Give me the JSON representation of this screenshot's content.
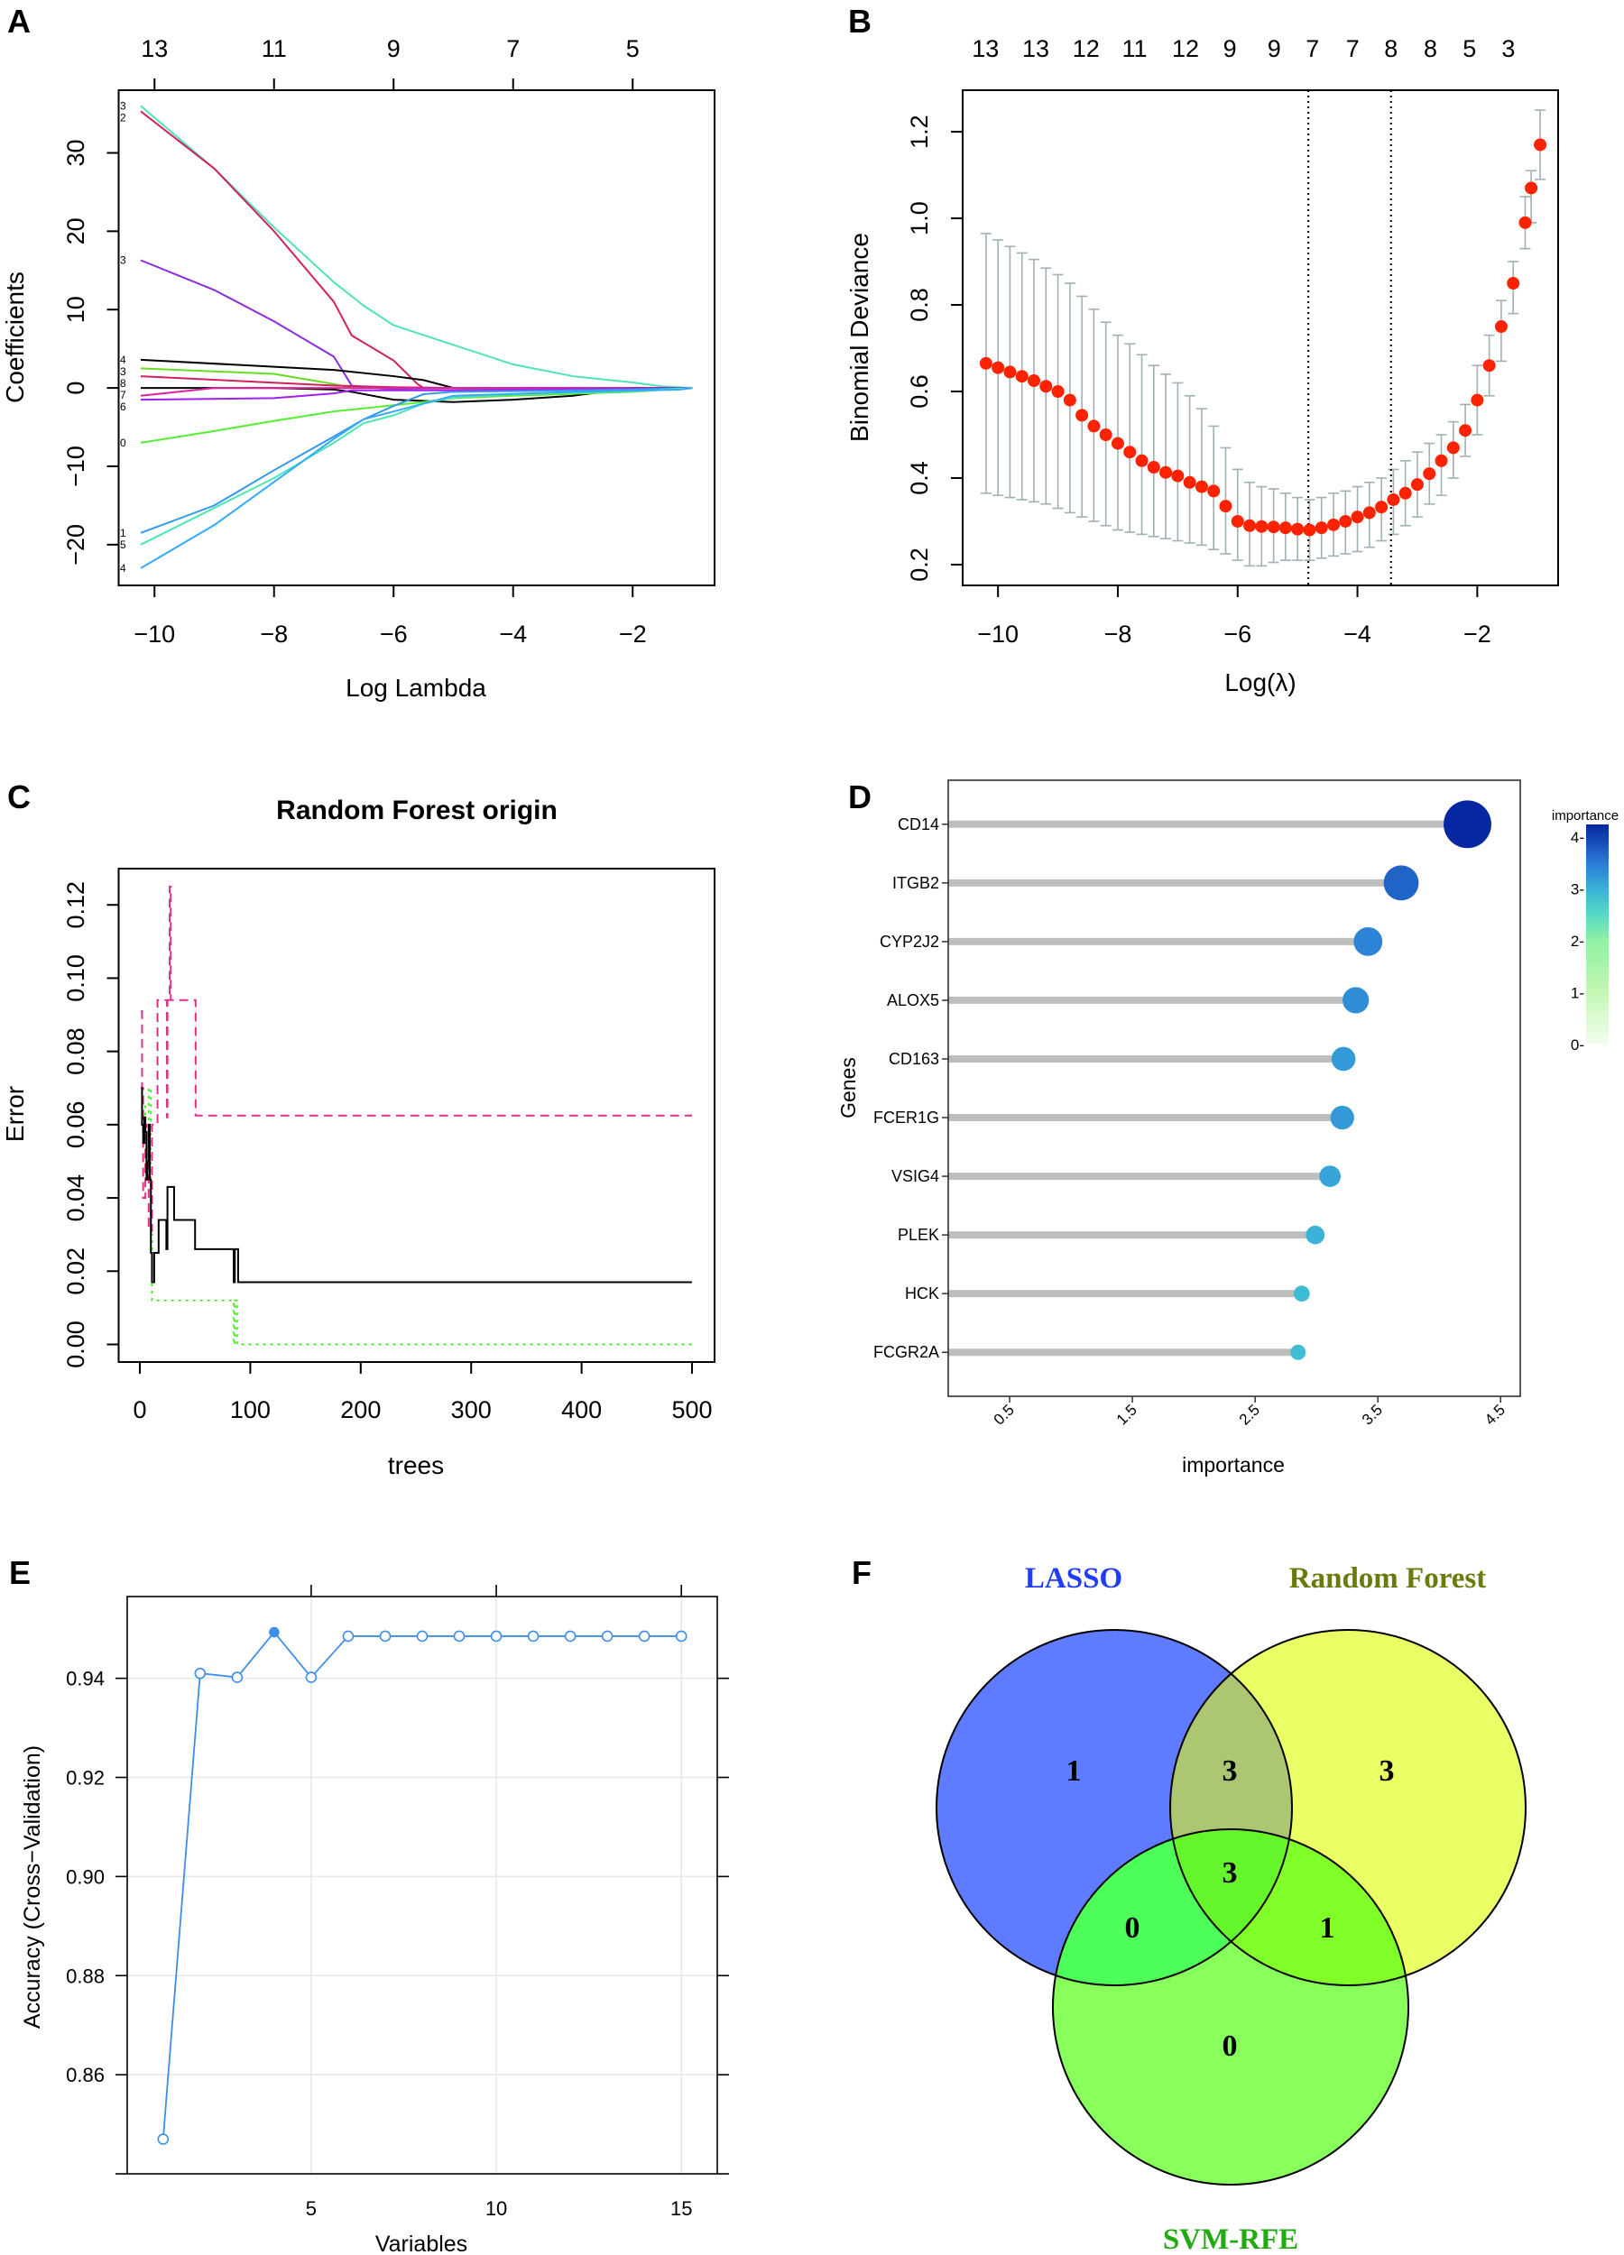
{
  "panel_labels": [
    "A",
    "B",
    "C",
    "D",
    "E",
    "F"
  ],
  "chart_data": [
    {
      "type": "line",
      "xlabel": "Log Lambda",
      "ylabel": "Coefficients",
      "xlim": [
        -10.6,
        -0.63
      ],
      "ylim": [
        -25.2,
        38
      ],
      "x_ticks": [
        -10,
        -8,
        -6,
        -4,
        -2
      ],
      "x_tick_labels": [
        "−10",
        "−8",
        "−6",
        "−4",
        "−2"
      ],
      "y_ticks": [
        -20,
        -10,
        0,
        10,
        20,
        30
      ],
      "y_tick_labels": [
        "−20",
        "−10",
        "0",
        "10",
        "20",
        "30"
      ],
      "top_axis": {
        "ticks": [
          -10,
          -8,
          -6,
          -4,
          -2
        ],
        "labels": [
          "13",
          "11",
          "9",
          "7",
          "5"
        ]
      },
      "series": [
        {
          "label": "3",
          "color": "#4fe3b8",
          "x": [
            -10.23,
            -9,
            -8,
            -7,
            -6.5,
            -6,
            -5,
            -4,
            -3,
            -2,
            -1.5,
            -1
          ],
          "y": [
            36,
            28,
            20.5,
            13.5,
            10.5,
            8,
            5.5,
            3,
            1.5,
            0.7,
            0.2,
            0
          ]
        },
        {
          "label": "2",
          "color": "#d0205f",
          "x": [
            -10.23,
            -9,
            -8,
            -7,
            -6.7,
            -6,
            -5.6,
            -5.5,
            -1
          ],
          "y": [
            35.3,
            28,
            20,
            11,
            6.7,
            3.5,
            0.5,
            0,
            0
          ]
        },
        {
          "label": "3",
          "color": "#8a2be2",
          "x": [
            -10.23,
            -9,
            -8,
            -7,
            -6.7,
            -6,
            -5,
            -1
          ],
          "y": [
            16.3,
            12.5,
            8.5,
            4,
            0.3,
            -0.2,
            -0.3,
            0
          ]
        },
        {
          "label": "4",
          "color": "#000000",
          "x": [
            -10.23,
            -8,
            -7,
            -6,
            -5.5,
            -5,
            -1
          ],
          "y": [
            3.6,
            2.7,
            2.3,
            1.5,
            1,
            0,
            0
          ]
        },
        {
          "label": "3",
          "color": "#66dd22",
          "x": [
            -10.23,
            -8,
            -7,
            -6.7,
            -1
          ],
          "y": [
            2.5,
            1.8,
            0.5,
            0,
            0
          ]
        },
        {
          "label": "8",
          "color": "#d0205f",
          "x": [
            -10.23,
            -7,
            -6,
            -5,
            -1
          ],
          "y": [
            1.5,
            0.3,
            0.1,
            0,
            0
          ]
        },
        {
          "label": "7",
          "color": "#000000",
          "x": [
            -10.23,
            -8,
            -7,
            -6.7,
            -6,
            -5,
            -4,
            -3,
            -2,
            -1
          ],
          "y": [
            0,
            0,
            -0.2,
            -0.5,
            -1.5,
            -1.8,
            -1.5,
            -1,
            0,
            0
          ]
        },
        {
          "label": "",
          "color": "#e020a0",
          "x": [
            -10.23,
            -9,
            -1
          ],
          "y": [
            -1,
            0,
            0
          ]
        },
        {
          "label": "6",
          "color": "#a020f0",
          "x": [
            -10.23,
            -8,
            -7,
            -6.7,
            -5,
            -2,
            -1
          ],
          "y": [
            -1.5,
            -1.3,
            -0.7,
            -0.3,
            -0.3,
            -0.1,
            0
          ]
        },
        {
          "label": "0",
          "color": "#55ee33",
          "x": [
            -10.23,
            -9,
            -8,
            -7,
            -6,
            -5.5,
            -5,
            -4,
            -2,
            -1
          ],
          "y": [
            -7,
            -5.5,
            -4.2,
            -3,
            -2.2,
            -1.8,
            -1.3,
            -1,
            -0.5,
            0
          ]
        },
        {
          "label": "1",
          "color": "#3399ee",
          "x": [
            -10.23,
            -9,
            -8,
            -7,
            -6.5,
            -6,
            -5.5,
            -5,
            -4,
            -2,
            -1
          ],
          "y": [
            -18.5,
            -15,
            -10.5,
            -6.2,
            -4,
            -2.3,
            -0.8,
            -0.5,
            -0.4,
            -0.2,
            0
          ]
        },
        {
          "label": "5",
          "color": "#4fe3b8",
          "x": [
            -10.23,
            -8,
            -7,
            -6.5,
            -6,
            -5.5,
            -5,
            -4,
            -2,
            -1
          ],
          "y": [
            -20,
            -11.5,
            -7,
            -4.5,
            -3.5,
            -2,
            -1.2,
            -0.8,
            -0.4,
            0
          ]
        },
        {
          "label": "4",
          "color": "#33aaff",
          "x": [
            -10.23,
            -9,
            -8,
            -7,
            -6.5,
            -6,
            -5.5,
            -5,
            -3,
            -1.2,
            -1
          ],
          "y": [
            -23,
            -17.5,
            -12,
            -6.5,
            -4,
            -3,
            -2,
            -1,
            -0.5,
            -0.2,
            0
          ]
        }
      ]
    },
    {
      "type": "scatter",
      "xlabel": "Log(λ)",
      "ylabel": "Binomial Deviance",
      "xlim": [
        -10.59,
        -0.65
      ],
      "ylim": [
        0.152,
        1.296
      ],
      "x_ticks": [
        -10,
        -8,
        -6,
        -4,
        -2
      ],
      "x_tick_labels": [
        "−10",
        "−8",
        "−6",
        "−4",
        "−2"
      ],
      "y_ticks": [
        0.2,
        0.4,
        0.6,
        0.8,
        1.0,
        1.2
      ],
      "y_tick_labels": [
        "0.2",
        "0.4",
        "0.6",
        "0.8",
        "1.0",
        "1.2"
      ],
      "top_axis": {
        "ticks": [
          -10.21,
          -9.37,
          -8.53,
          -7.72,
          -6.87,
          -6.13,
          -5.39,
          -4.75,
          -4.08,
          -3.44,
          -2.78,
          -2.13,
          -1.48
        ],
        "labels": [
          "13",
          "13",
          "12",
          "11",
          "12",
          "9",
          "9",
          "7",
          "7",
          "8",
          "8",
          "5",
          "3"
        ]
      },
      "vlines": [
        -4.82,
        -3.44
      ],
      "point_color": "#ff2200",
      "errorbar_color": "#a0b0b4",
      "log_lambda": [
        -10.2,
        -10.0,
        -9.8,
        -9.6,
        -9.4,
        -9.2,
        -9.0,
        -8.8,
        -8.6,
        -8.4,
        -8.2,
        -8.0,
        -7.8,
        -7.6,
        -7.4,
        -7.2,
        -7.0,
        -6.8,
        -6.6,
        -6.4,
        -6.2,
        -6.0,
        -5.8,
        -5.6,
        -5.4,
        -5.2,
        -5.0,
        -4.8,
        -4.6,
        -4.4,
        -4.2,
        -4.0,
        -3.8,
        -3.6,
        -3.4,
        -3.2,
        -3.0,
        -2.8,
        -2.6,
        -2.4,
        -2.2,
        -2.0,
        -1.8,
        -1.6,
        -1.4,
        -1.2,
        -1.1,
        -0.95
      ],
      "mean": [
        0.665,
        0.655,
        0.645,
        0.635,
        0.625,
        0.612,
        0.6,
        0.58,
        0.545,
        0.52,
        0.5,
        0.48,
        0.46,
        0.44,
        0.425,
        0.413,
        0.405,
        0.39,
        0.38,
        0.37,
        0.335,
        0.3,
        0.29,
        0.288,
        0.287,
        0.285,
        0.282,
        0.28,
        0.285,
        0.292,
        0.3,
        0.31,
        0.32,
        0.333,
        0.35,
        0.365,
        0.385,
        0.41,
        0.44,
        0.47,
        0.51,
        0.58,
        0.66,
        0.75,
        0.85,
        0.99,
        1.07,
        1.17
      ],
      "upper": [
        0.965,
        0.95,
        0.935,
        0.92,
        0.905,
        0.885,
        0.87,
        0.85,
        0.82,
        0.79,
        0.76,
        0.73,
        0.71,
        0.685,
        0.66,
        0.64,
        0.62,
        0.59,
        0.56,
        0.52,
        0.47,
        0.42,
        0.39,
        0.38,
        0.375,
        0.365,
        0.355,
        0.35,
        0.355,
        0.365,
        0.37,
        0.38,
        0.39,
        0.4,
        0.42,
        0.44,
        0.46,
        0.48,
        0.5,
        0.53,
        0.57,
        0.66,
        0.73,
        0.81,
        0.9,
        1.05,
        1.11,
        1.25
      ],
      "lower": [
        0.365,
        0.36,
        0.355,
        0.35,
        0.345,
        0.34,
        0.33,
        0.32,
        0.31,
        0.3,
        0.29,
        0.28,
        0.275,
        0.27,
        0.265,
        0.26,
        0.255,
        0.25,
        0.245,
        0.235,
        0.225,
        0.21,
        0.197,
        0.197,
        0.205,
        0.21,
        0.21,
        0.21,
        0.215,
        0.22,
        0.225,
        0.23,
        0.24,
        0.255,
        0.27,
        0.29,
        0.31,
        0.34,
        0.36,
        0.4,
        0.45,
        0.5,
        0.59,
        0.67,
        0.78,
        0.93,
        0.99,
        1.09
      ]
    },
    {
      "type": "line",
      "title": "Random Forest origin",
      "xlabel": "trees",
      "ylabel": "Error",
      "xlim": [
        -19.2,
        520.4
      ],
      "ylim": [
        -0.0048,
        0.1299
      ],
      "x_ticks": [
        0,
        100,
        200,
        300,
        400,
        500
      ],
      "x_tick_labels": [
        "0",
        "100",
        "200",
        "300",
        "400",
        "500"
      ],
      "y_ticks": [
        0,
        0.02,
        0.04,
        0.06,
        0.08,
        0.1,
        0.12
      ],
      "y_tick_labels": [
        "0.00",
        "0.02",
        "0.04",
        "0.06",
        "0.08",
        "0.10",
        "0.12"
      ],
      "series": [
        {
          "style": "solid",
          "color": "#000000",
          "points": [
            [
              1,
              0.07
            ],
            [
              2,
              0.06
            ],
            [
              3,
              0.055
            ],
            [
              4,
              0.062
            ],
            [
              5,
              0.058
            ],
            [
              6,
              0.045
            ],
            [
              7,
              0.05
            ],
            [
              8,
              0.06
            ],
            [
              9,
              0.045
            ],
            [
              10,
              0.025
            ],
            [
              11,
              0.017
            ],
            [
              13,
              0.025
            ],
            [
              17,
              0.034
            ],
            [
              23,
              0.034
            ],
            [
              24,
              0.026
            ],
            [
              25,
              0.043
            ],
            [
              30,
              0.043
            ],
            [
              31,
              0.034
            ],
            [
              49,
              0.034
            ],
            [
              50,
              0.026
            ],
            [
              84,
              0.026
            ],
            [
              85,
              0.017
            ],
            [
              86,
              0.026
            ],
            [
              88,
              0.026
            ],
            [
              89,
              0.017
            ],
            [
              500,
              0.017
            ]
          ]
        },
        {
          "style": "dashed",
          "color": "#e0308a",
          "points": [
            [
              1,
              0.091
            ],
            [
              2,
              0.07
            ],
            [
              3,
              0.04
            ],
            [
              5,
              0.06
            ],
            [
              6,
              0.05
            ],
            [
              8,
              0.031
            ],
            [
              10,
              0.031
            ],
            [
              11,
              0.06
            ],
            [
              16,
              0.094
            ],
            [
              24,
              0.094
            ],
            [
              24.5,
              0.062
            ],
            [
              25,
              0.094
            ],
            [
              27,
              0.125
            ],
            [
              28,
              0.094
            ],
            [
              50,
              0.094
            ],
            [
              50.5,
              0.0625
            ],
            [
              500,
              0.0625
            ]
          ]
        },
        {
          "style": "dotted",
          "color": "#44ee22",
          "points": [
            [
              1,
              0.06
            ],
            [
              3,
              0.065
            ],
            [
              5,
              0.045
            ],
            [
              8,
              0.07
            ],
            [
              10,
              0.03
            ],
            [
              11,
              0.012
            ],
            [
              84,
              0.012
            ],
            [
              85,
              0
            ],
            [
              86,
              0.012
            ],
            [
              88,
              0
            ],
            [
              500,
              0
            ]
          ]
        }
      ]
    },
    {
      "type": "scatter",
      "subtype": "lollipop",
      "xlabel": "importance",
      "ylabel": "Genes",
      "xlim": [
        0,
        4.66
      ],
      "x_ticks": [
        0.5,
        1.5,
        2.5,
        3.5,
        4.5
      ],
      "x_tick_labels": [
        "0.5",
        "1.5",
        "2.5",
        "3.5",
        "4.5"
      ],
      "categories": [
        "CD14",
        "ITGB2",
        "CYP2J2",
        "ALOX5",
        "CD163",
        "FCER1G",
        "VSIG4",
        "PLEK",
        "HCK",
        "FCGR2A"
      ],
      "values": [
        4.23,
        3.69,
        3.42,
        3.32,
        3.22,
        3.21,
        3.11,
        2.99,
        2.88,
        2.85
      ],
      "stem_color": "#bebebe",
      "legend": {
        "title": "importance",
        "position": "right",
        "range": [
          0,
          4.24
        ],
        "ticks": [
          0,
          1,
          2,
          3,
          4
        ],
        "tick_labels": [
          "0-",
          "1-",
          "2-",
          "3-",
          "4-"
        ],
        "colorscale": [
          [
            0,
            "#f4fdf0"
          ],
          [
            1,
            "#c4f7b4"
          ],
          [
            2,
            "#8ff2a2"
          ],
          [
            2.5,
            "#55d9c6"
          ],
          [
            3,
            "#3ab2d8"
          ],
          [
            3.5,
            "#2a7ad6"
          ],
          [
            4.24,
            "#0526a0"
          ]
        ]
      }
    },
    {
      "type": "line",
      "xlabel": "Variables",
      "ylabel": "Accuracy (Cross−Validation)",
      "xlim": [
        0.03,
        15.97
      ],
      "ylim": [
        0.84,
        0.9565
      ],
      "grid": true,
      "color": "#3d8ee8",
      "x_ticks": [
        5,
        10,
        15
      ],
      "x_tick_labels": [
        "5",
        "10",
        "15"
      ],
      "y_ticks": [
        0.86,
        0.88,
        0.9,
        0.92,
        0.94
      ],
      "y_tick_labels": [
        "0.86",
        "0.88",
        "0.90",
        "0.92",
        "0.94"
      ],
      "x": [
        1,
        2,
        3,
        4,
        5,
        6,
        7,
        8,
        9,
        10,
        11,
        12,
        13,
        14,
        15
      ],
      "y": [
        0.847,
        0.941,
        0.9402,
        0.9493,
        0.9402,
        0.9485,
        0.9485,
        0.9485,
        0.9485,
        0.9485,
        0.9485,
        0.9485,
        0.9485,
        0.9485,
        0.9485
      ],
      "highlight_x": 4
    },
    {
      "type": "venn",
      "sets": [
        {
          "name": "LASSO",
          "label_color": "#1f3cff",
          "fill": "#5f7bff"
        },
        {
          "name": "Random Forest",
          "label_color": "#6b7a0a",
          "fill": "#eaff66"
        },
        {
          "name": "SVM-RFE",
          "label_color": "#22aa11",
          "fill": "#88ff5a"
        }
      ],
      "regions": {
        "LASSO_only": "1",
        "RandomForest_only": "3",
        "SVM-RFE_only": "0",
        "LASSO_RandomForest": "3",
        "LASSO_SVM-RFE": "0",
        "RandomForest_SVM-RFE": "1",
        "all": "3"
      },
      "region_fills": {
        "LASSO_RandomForest": "#adc671",
        "LASSO_SVM-RFE": "#4dff58",
        "RandomForest_SVM-RFE": "#80ff28",
        "all": "#64f52a"
      }
    }
  ]
}
